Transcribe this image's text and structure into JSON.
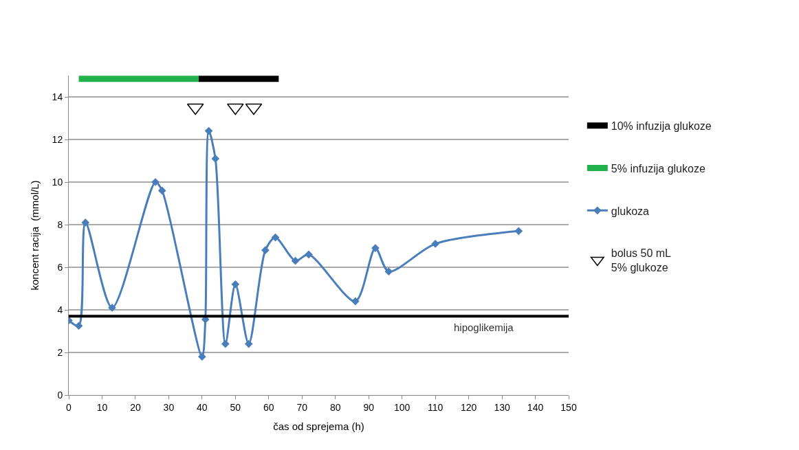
{
  "chart_data": {
    "type": "line",
    "xlabel": "čas od sprejema (h)",
    "ylabel": "koncent racija  (mmol/L)",
    "xlim": [
      0,
      150
    ],
    "xticks": [
      0,
      10,
      20,
      30,
      40,
      50,
      60,
      70,
      80,
      90,
      100,
      110,
      120,
      130,
      140,
      150
    ],
    "ylim": [
      0,
      15
    ],
    "yticks": [
      0,
      2,
      4,
      6,
      8,
      10,
      12,
      14
    ],
    "grid": "y",
    "legend": "right",
    "series": [
      {
        "name": "10% infuzija glukoze",
        "color": "#000000",
        "marker": "none",
        "x": [
          39,
          63
        ],
        "values": [
          14.85,
          14.85
        ]
      },
      {
        "name": "5% infuzija glukoze",
        "color": "#22b14c",
        "marker": "none",
        "x": [
          3,
          39
        ],
        "values": [
          14.85,
          14.85
        ]
      },
      {
        "name": "glukoza",
        "color": "#4a7ebb",
        "marker": "diamond",
        "x": [
          0,
          3,
          5,
          13,
          26,
          28,
          40,
          41,
          42,
          44,
          47,
          50,
          54,
          59,
          62,
          68,
          72,
          86,
          92,
          96,
          110,
          135
        ],
        "values": [
          3.5,
          3.25,
          8.1,
          4.1,
          10,
          9.6,
          1.8,
          3.55,
          12.4,
          11.1,
          2.4,
          5.2,
          2.4,
          6.8,
          7.4,
          6.3,
          6.6,
          4.4,
          6.9,
          5.8,
          7.1,
          7.7
        ]
      },
      {
        "name": "bolus 50 mL\n5% glukoze",
        "type": "scatter",
        "color": "#000000",
        "marker": "triangle",
        "x": [
          38,
          50,
          55.5
        ],
        "values": [
          13.5,
          13.5,
          13.5
        ]
      }
    ],
    "ref_lines": [
      {
        "axis": "y",
        "value": 3.7,
        "label": "hipoglikemija",
        "color": "#000000"
      }
    ]
  }
}
